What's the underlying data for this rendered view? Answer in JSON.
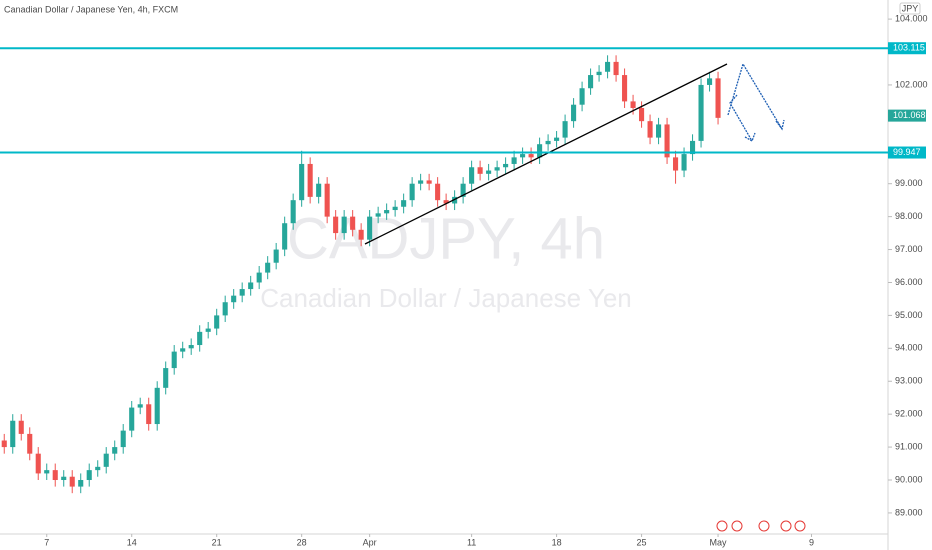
{
  "chart_data": {
    "type": "candlestick",
    "title": "Canadian Dollar / Japanese Yen, 4h, FXCM",
    "watermark": "CADJPY, 4h",
    "watermark_subtitle": "Canadian Dollar / Japanese Yen",
    "currency": "JPY",
    "open": [
      91.2,
      91.0,
      91.8,
      91.4,
      90.8,
      90.2,
      90.3,
      90.0,
      90.1,
      89.8,
      90.0,
      90.3,
      90.4,
      90.8,
      91.0,
      91.5,
      92.2,
      92.3,
      91.7,
      92.8,
      93.4,
      93.9,
      94.0,
      94.1,
      94.5,
      94.6,
      95.0,
      95.4,
      95.6,
      95.8,
      96.0,
      96.3,
      96.6,
      97.0,
      97.8,
      98.5,
      99.6,
      98.6,
      99.0,
      98.0,
      97.5,
      98.0,
      97.6,
      97.3,
      98.0,
      98.1,
      98.2,
      98.3,
      98.5,
      99.0,
      99.1,
      99.0,
      98.5,
      98.4,
      98.6,
      99.0,
      99.5,
      99.3,
      99.4,
      99.5,
      99.6,
      99.8,
      99.9,
      99.8,
      100.2,
      100.3,
      100.4,
      100.9,
      101.4,
      101.9,
      102.3,
      102.4,
      102.7,
      102.3,
      101.5,
      101.3,
      100.9,
      100.4,
      100.8,
      99.8,
      99.4,
      99.9,
      100.3,
      102.0,
      102.2
    ],
    "high": [
      91.4,
      92.0,
      92.0,
      91.6,
      91.0,
      90.5,
      90.5,
      90.3,
      90.3,
      90.2,
      90.5,
      90.6,
      91.0,
      91.2,
      91.7,
      92.4,
      92.5,
      92.5,
      93.0,
      93.6,
      94.1,
      94.2,
      94.3,
      94.7,
      94.8,
      95.2,
      95.6,
      95.8,
      96.0,
      96.2,
      96.5,
      96.8,
      97.2,
      98.0,
      98.7,
      100.0,
      99.8,
      99.2,
      99.2,
      98.2,
      98.2,
      98.2,
      97.8,
      98.2,
      98.3,
      98.4,
      98.5,
      98.7,
      99.2,
      99.3,
      99.3,
      99.2,
      98.7,
      98.8,
      99.2,
      99.7,
      99.7,
      99.6,
      99.7,
      99.8,
      100.0,
      100.1,
      100.1,
      100.4,
      100.5,
      100.6,
      101.1,
      101.6,
      102.1,
      102.5,
      102.6,
      102.9,
      102.9,
      102.5,
      101.7,
      101.5,
      101.1,
      101.0,
      101.0,
      100.0,
      100.1,
      100.5,
      102.2,
      102.4,
      102.4
    ],
    "low": [
      90.8,
      90.8,
      91.2,
      90.6,
      90.0,
      90.0,
      89.8,
      89.8,
      89.6,
      89.6,
      89.8,
      90.1,
      90.2,
      90.6,
      90.8,
      91.3,
      92.0,
      91.5,
      91.5,
      92.6,
      93.2,
      93.7,
      93.8,
      93.9,
      94.3,
      94.4,
      94.8,
      95.2,
      95.4,
      95.6,
      95.8,
      96.1,
      96.4,
      96.8,
      97.6,
      98.3,
      98.4,
      98.4,
      97.8,
      97.3,
      97.3,
      97.4,
      97.1,
      97.1,
      97.8,
      97.9,
      98.0,
      98.1,
      98.3,
      98.8,
      98.8,
      98.3,
      98.2,
      98.2,
      98.4,
      98.8,
      99.1,
      99.1,
      99.2,
      99.3,
      99.4,
      99.6,
      99.6,
      99.6,
      100.0,
      100.1,
      100.2,
      100.7,
      101.2,
      101.7,
      102.1,
      102.2,
      102.1,
      101.3,
      101.1,
      100.7,
      100.2,
      100.2,
      99.6,
      99.0,
      99.2,
      99.7,
      100.1,
      101.8,
      100.8
    ],
    "close": [
      91.0,
      91.8,
      91.4,
      90.8,
      90.2,
      90.3,
      90.0,
      90.1,
      89.8,
      90.0,
      90.3,
      90.4,
      90.8,
      91.0,
      91.5,
      92.2,
      92.3,
      91.7,
      92.8,
      93.4,
      93.9,
      94.0,
      94.1,
      94.5,
      94.6,
      95.0,
      95.4,
      95.6,
      95.8,
      96.0,
      96.3,
      96.6,
      97.0,
      97.8,
      98.5,
      99.6,
      98.6,
      99.0,
      98.0,
      97.5,
      98.0,
      97.6,
      97.3,
      98.0,
      98.1,
      98.2,
      98.3,
      98.5,
      99.0,
      99.1,
      99.0,
      98.5,
      98.4,
      98.6,
      99.0,
      99.5,
      99.3,
      99.4,
      99.5,
      99.6,
      99.8,
      99.9,
      99.8,
      100.2,
      100.3,
      100.4,
      100.9,
      101.4,
      101.9,
      102.3,
      102.4,
      102.7,
      102.3,
      101.5,
      101.3,
      100.9,
      100.4,
      100.8,
      99.8,
      99.4,
      99.9,
      100.3,
      102.0,
      102.2,
      101.0
    ],
    "up_color": "#26a69a",
    "down_color": "#ef5350",
    "levels": [
      103.115,
      99.947
    ],
    "level_color": "#00b8c8",
    "last_price": 101.068,
    "last_price_color": "#26a69a",
    "xlim": [
      -0.5,
      104
    ],
    "xticks": [
      {
        "value": 5,
        "label": "7"
      },
      {
        "value": 15,
        "label": "14"
      },
      {
        "value": 25,
        "label": "21"
      },
      {
        "value": 35,
        "label": "28"
      },
      {
        "value": 43,
        "label": "Apr"
      },
      {
        "value": 55,
        "label": "11"
      },
      {
        "value": 65,
        "label": "18"
      },
      {
        "value": 75,
        "label": "25"
      },
      {
        "value": 84,
        "label": "May"
      },
      {
        "value": 95,
        "label": "9"
      }
    ],
    "ylim": [
      88.36,
      104.58
    ],
    "yticks": [
      {
        "value": 89,
        "label": "89.000"
      },
      {
        "value": 90,
        "label": "90.000"
      },
      {
        "value": 91,
        "label": "91.000"
      },
      {
        "value": 92,
        "label": "92.000"
      },
      {
        "value": 93,
        "label": "93.000"
      },
      {
        "value": 94,
        "label": "94.000"
      },
      {
        "value": 95,
        "label": "95.000"
      },
      {
        "value": 96,
        "label": "96.000"
      },
      {
        "value": 97,
        "label": "97.000"
      },
      {
        "value": 98,
        "label": "98.000"
      },
      {
        "value": 99,
        "label": "99.000"
      },
      {
        "value": 102,
        "label": "102.000"
      },
      {
        "value": 104,
        "label": "104.000"
      }
    ]
  }
}
